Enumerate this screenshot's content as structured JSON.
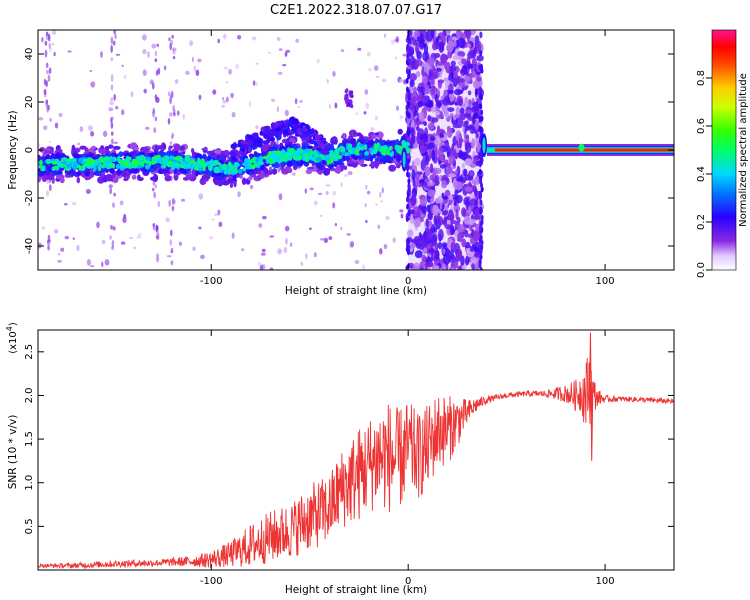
{
  "title": "C2E1.2022.318.07.07.G17",
  "chart_data": [
    {
      "type": "heatmap",
      "xlabel": "Height of straight line (km)",
      "ylabel": "Frequency (Hz)",
      "xlim": [
        -188,
        135
      ],
      "ylim": [
        -50,
        50
      ],
      "x_ticks": [
        -100,
        0,
        100
      ],
      "y_ticks": [
        -40,
        -20,
        0,
        20,
        40
      ],
      "colorbar": {
        "label": "Normalized spectral amplitude",
        "range": [
          0,
          1
        ],
        "ticks": [
          0.0,
          0.2,
          0.4,
          0.6,
          0.8
        ]
      },
      "ridge_line": {
        "x": [
          -188,
          -170,
          -150,
          -130,
          -115,
          -100,
          -90,
          -80,
          -70,
          -60,
          -50,
          -40,
          -30,
          -20,
          -15,
          -10,
          -5,
          -2,
          0
        ],
        "y": [
          -6,
          -6,
          -5.5,
          -5,
          -5,
          -7,
          -8,
          -6,
          -3,
          -2,
          -2,
          -3,
          0,
          0,
          0,
          -1,
          0,
          2,
          0
        ]
      },
      "upper_branch": {
        "x": [
          -90,
          -80,
          -70,
          -60,
          -52,
          -45,
          -40
        ],
        "y": [
          -2,
          3,
          7,
          10,
          8,
          3,
          0
        ]
      },
      "noisy_band_x": [
        0,
        37
      ],
      "stable_segment": {
        "x": [
          40,
          135
        ],
        "y": 0
      }
    },
    {
      "type": "line",
      "xlabel": "Height of straight line (km)",
      "ylabel": "SNR (10 * v/v)",
      "ylabel_exponent": "(x10",
      "ylabel_exponent_power": "4",
      "ylabel_exponent_close": ")",
      "xlim": [
        -188,
        135
      ],
      "ylim": [
        0,
        2.75
      ],
      "x_ticks": [
        -100,
        0,
        100
      ],
      "y_ticks": [
        0.5,
        1.0,
        1.5,
        2.0,
        2.5
      ],
      "y_tick_labels": [
        "0.5",
        "1.0",
        "1.5",
        "2.0",
        "2.5"
      ],
      "line_color": "#ee3333",
      "series": [
        {
          "x": [
            -188,
            -170,
            -150,
            -130,
            -110,
            -100,
            -90,
            -80,
            -70,
            -60,
            -50,
            -40,
            -35,
            -30,
            -25,
            -20,
            -15,
            -10,
            -5,
            0,
            5,
            10,
            15,
            20,
            25,
            30,
            35,
            40,
            50,
            60,
            70,
            80,
            85,
            88,
            90,
            92,
            94,
            96,
            100,
            110,
            120,
            135
          ],
          "y": [
            0.05,
            0.05,
            0.07,
            0.08,
            0.1,
            0.12,
            0.18,
            0.28,
            0.38,
            0.45,
            0.6,
            0.7,
            0.9,
            1.0,
            1.1,
            1.2,
            1.3,
            1.3,
            1.25,
            1.4,
            1.3,
            1.4,
            1.6,
            1.6,
            1.7,
            1.8,
            1.9,
            1.95,
            2.0,
            2.02,
            2.02,
            2.02,
            2.0,
            2.05,
            2.0,
            2.1,
            2.0,
            1.98,
            1.96,
            1.96,
            1.95,
            1.93
          ],
          "noise": [
            0.02,
            0.03,
            0.04,
            0.04,
            0.06,
            0.1,
            0.15,
            0.25,
            0.3,
            0.32,
            0.38,
            0.4,
            0.45,
            0.5,
            0.55,
            0.55,
            0.6,
            0.65,
            0.6,
            0.55,
            0.5,
            0.5,
            0.45,
            0.4,
            0.3,
            0.15,
            0.08,
            0.04,
            0.03,
            0.03,
            0.04,
            0.1,
            0.18,
            0.25,
            0.4,
            0.45,
            0.25,
            0.1,
            0.04,
            0.03,
            0.03,
            0.03
          ]
        }
      ]
    }
  ]
}
